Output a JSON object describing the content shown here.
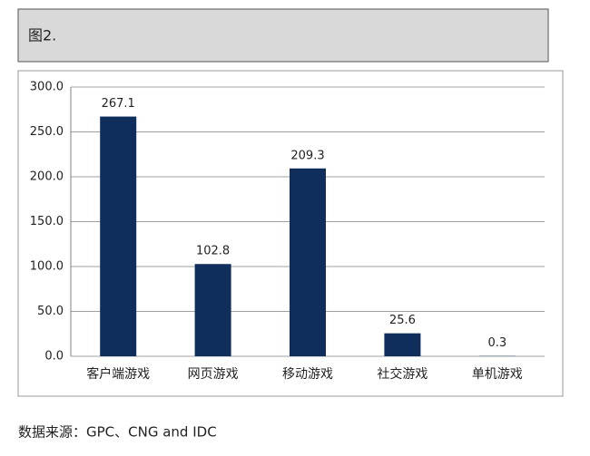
{
  "figure_label": "图2.",
  "chart_data": {
    "type": "bar",
    "categories": [
      "客户端游戏",
      "网页游戏",
      "移动游戏",
      "社交游戏",
      "单机游戏"
    ],
    "values": [
      267.1,
      102.8,
      209.3,
      25.6,
      0.3
    ],
    "color": "#0f2e5c",
    "ylim": [
      0,
      300
    ],
    "yticks": [
      {
        "value": 0,
        "label": "0.0"
      },
      {
        "value": 50,
        "label": "50.0"
      },
      {
        "value": 100,
        "label": "100.0"
      },
      {
        "value": 150,
        "label": "150.0"
      },
      {
        "value": 200,
        "label": "200.0"
      },
      {
        "value": 250,
        "label": "250.0"
      },
      {
        "value": 300,
        "label": "300.0"
      }
    ],
    "grid": true
  },
  "source": "数据来源：GPC、CNG and IDC"
}
